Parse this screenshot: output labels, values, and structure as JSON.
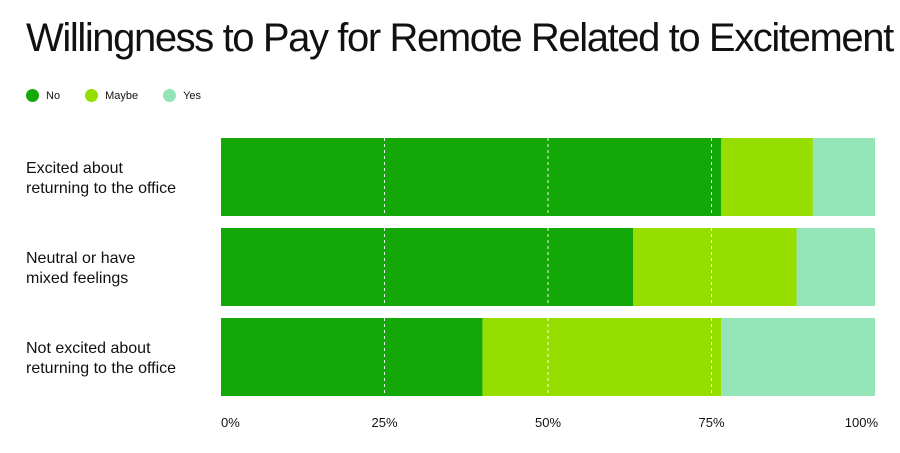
{
  "chart_data": {
    "type": "bar",
    "orientation": "horizontal",
    "stacked": true,
    "title": "Willingness to Pay for Remote Related to Excitement",
    "categories": [
      [
        "Excited about",
        "returning to the office"
      ],
      [
        "Neutral or have",
        "mixed feelings"
      ],
      [
        "Not excited about",
        "returning to the office"
      ]
    ],
    "series": [
      {
        "name": "No",
        "color": "#13a808",
        "values": [
          76.5,
          63,
          40
        ]
      },
      {
        "name": "Maybe",
        "color": "#96dd00",
        "values": [
          14,
          25,
          36.5
        ]
      },
      {
        "name": "Yes",
        "color": "#93e5b7",
        "values": [
          9.5,
          12,
          23.5
        ]
      }
    ],
    "xlim": [
      0,
      100
    ],
    "x_ticks": [
      0,
      25,
      50,
      75,
      100
    ],
    "x_tick_labels": [
      "0%",
      "25%",
      "50%",
      "75%",
      "100%"
    ],
    "grid": true,
    "legend": "top-left"
  }
}
